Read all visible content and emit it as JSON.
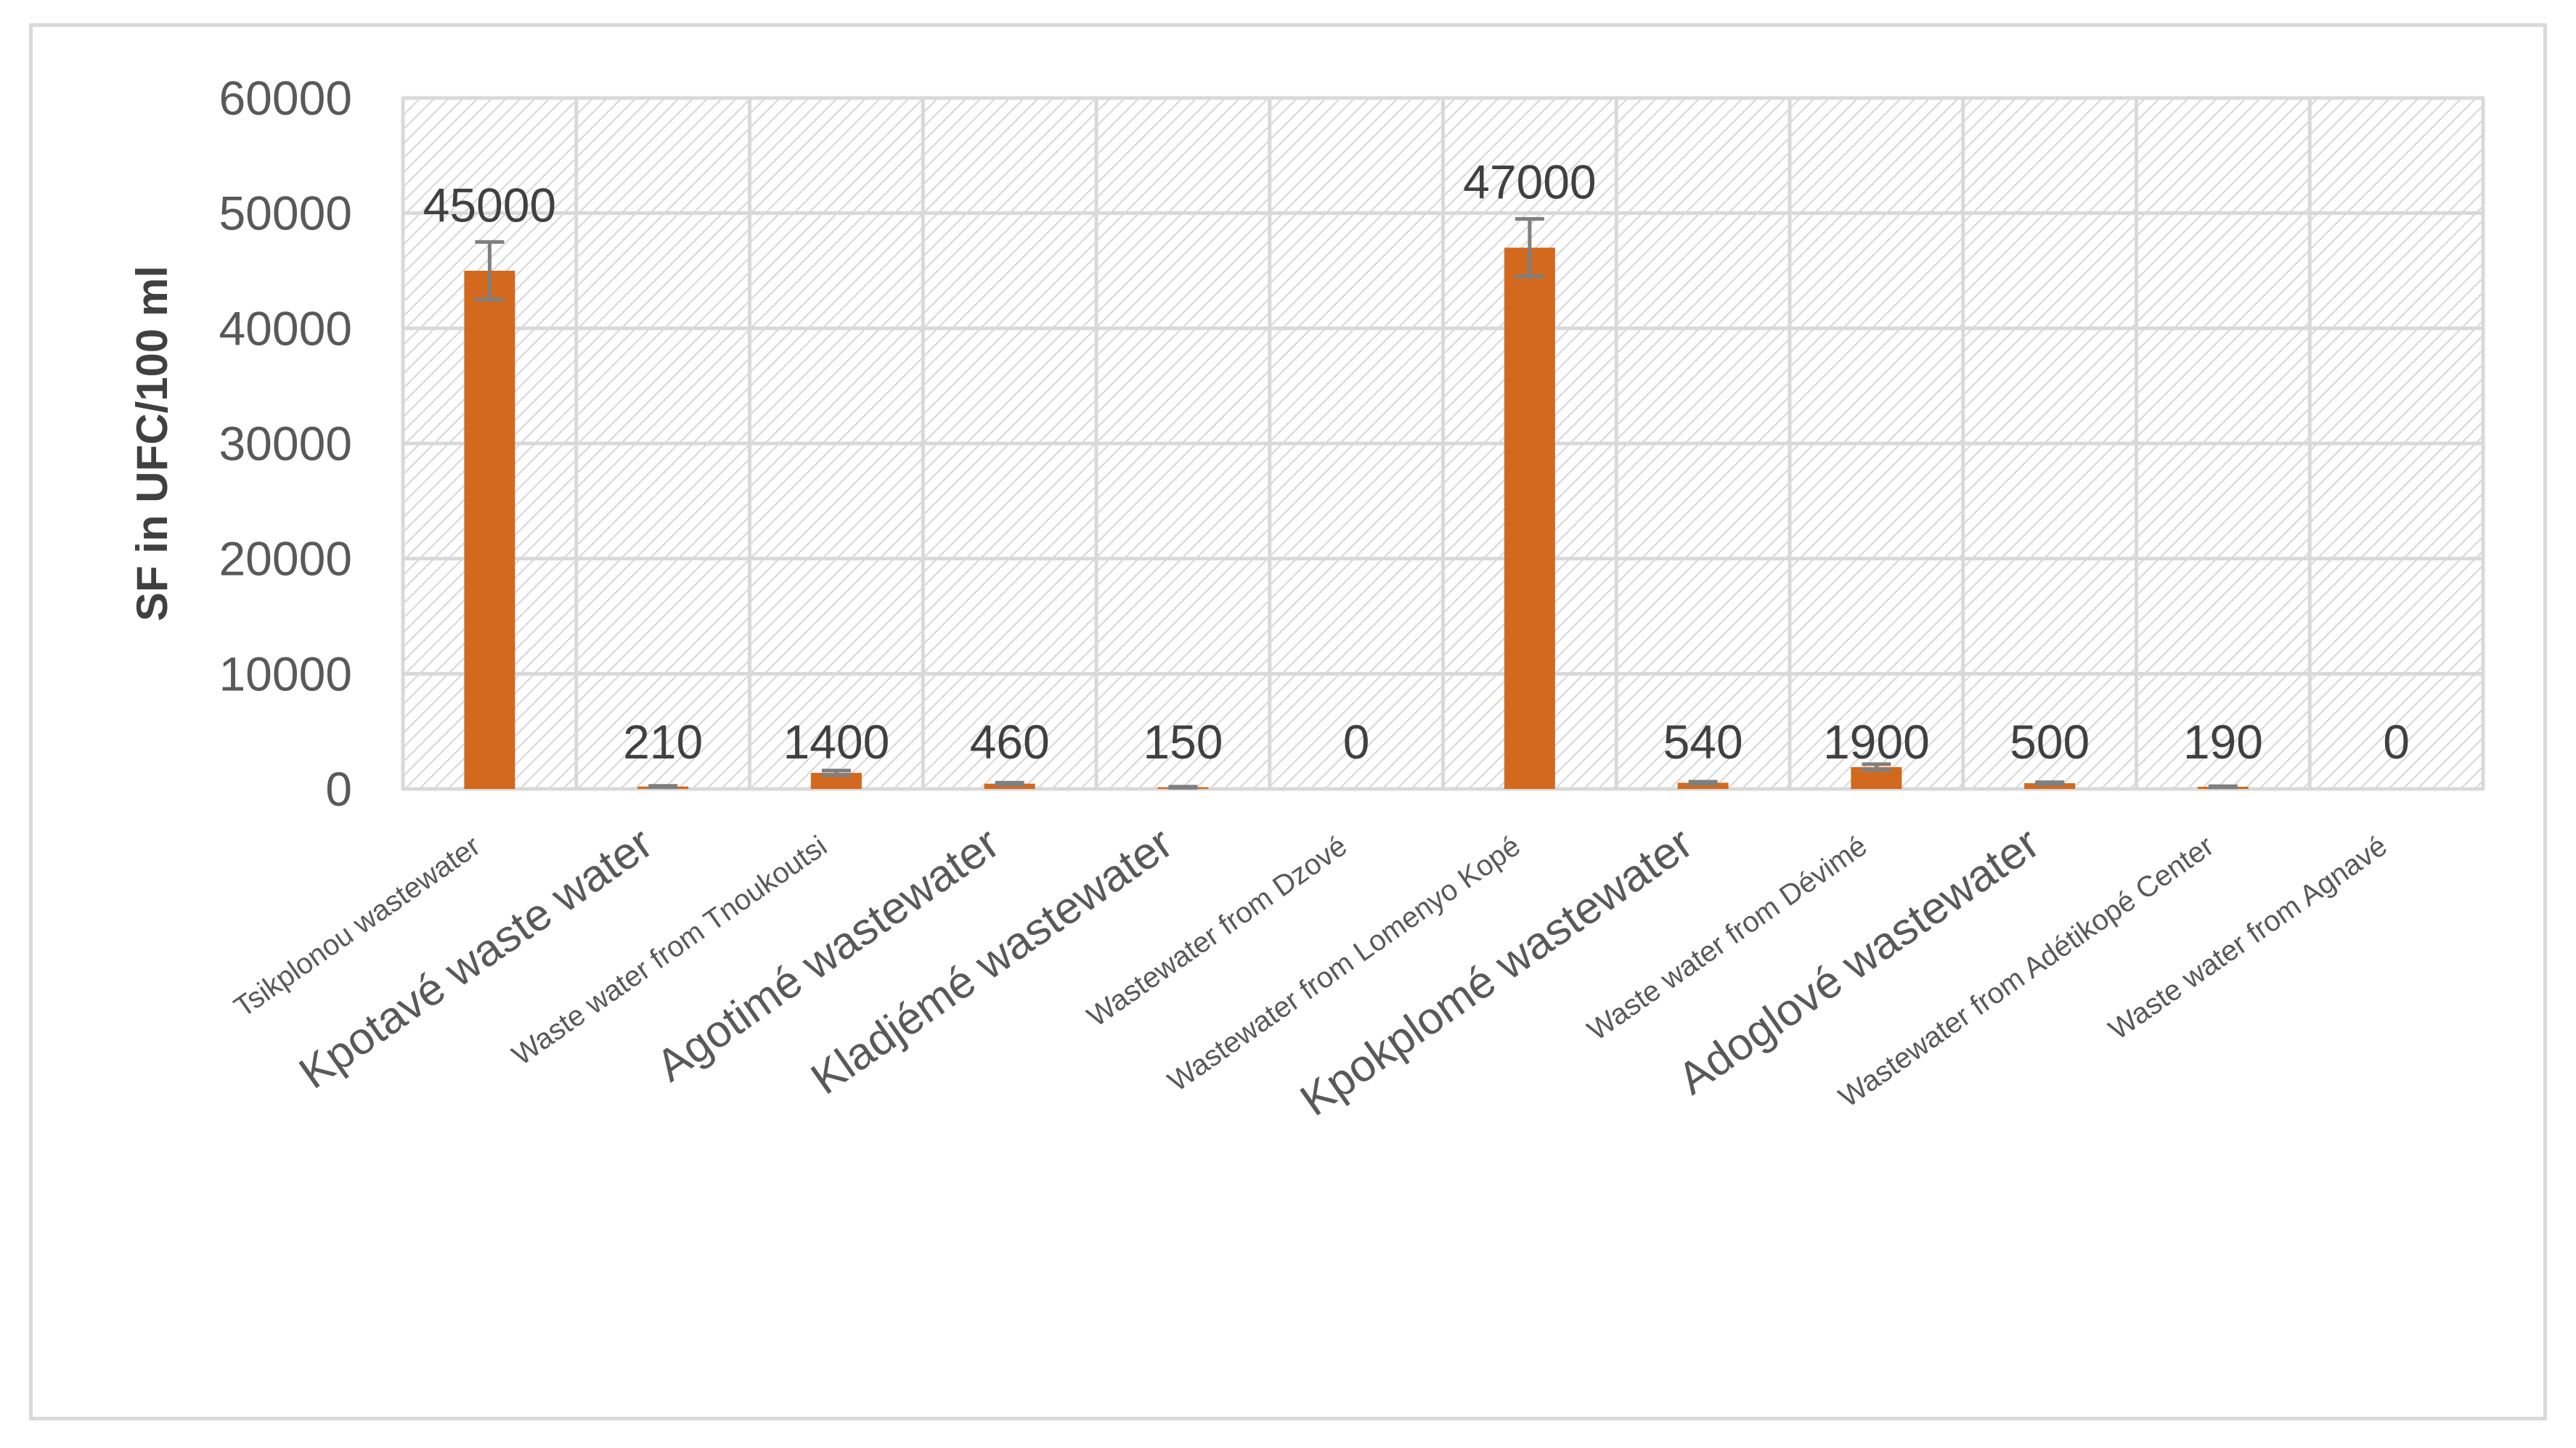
{
  "chart_data": {
    "type": "bar",
    "title": "",
    "xlabel": "",
    "ylabel": "SF in UFC/100 ml",
    "ylim": [
      0,
      60000
    ],
    "yticks": [
      0,
      10000,
      20000,
      30000,
      40000,
      50000,
      60000
    ],
    "grid": true,
    "legend": "none",
    "bar_color": "#D2691E",
    "error_bar_color": "#7f7f7f",
    "categories": [
      "Tsikplonou wastewater",
      "Kpotavé waste water",
      "Waste water from Tnoukoutsi",
      "Agotimé wastewater",
      "Kladjémé wastewater",
      "Wastewater from Dzové",
      "Wastewater from Lomenyo Kopé",
      "Kpokplomé wastewater",
      "Waste water from Dévimé",
      "Adoglové wastewater",
      "Wastewater from Adétikopé Center",
      "Waste water from Agnavé"
    ],
    "values": [
      45000,
      210,
      1400,
      460,
      150,
      0,
      47000,
      540,
      1900,
      500,
      190,
      0
    ],
    "data_labels": [
      "45000",
      "210",
      "1400",
      "460",
      "150",
      "0",
      "47000",
      "540",
      "1900",
      "500",
      "190",
      "0"
    ],
    "error": [
      2500,
      60,
      200,
      80,
      50,
      0,
      2500,
      90,
      250,
      80,
      50,
      0
    ]
  }
}
